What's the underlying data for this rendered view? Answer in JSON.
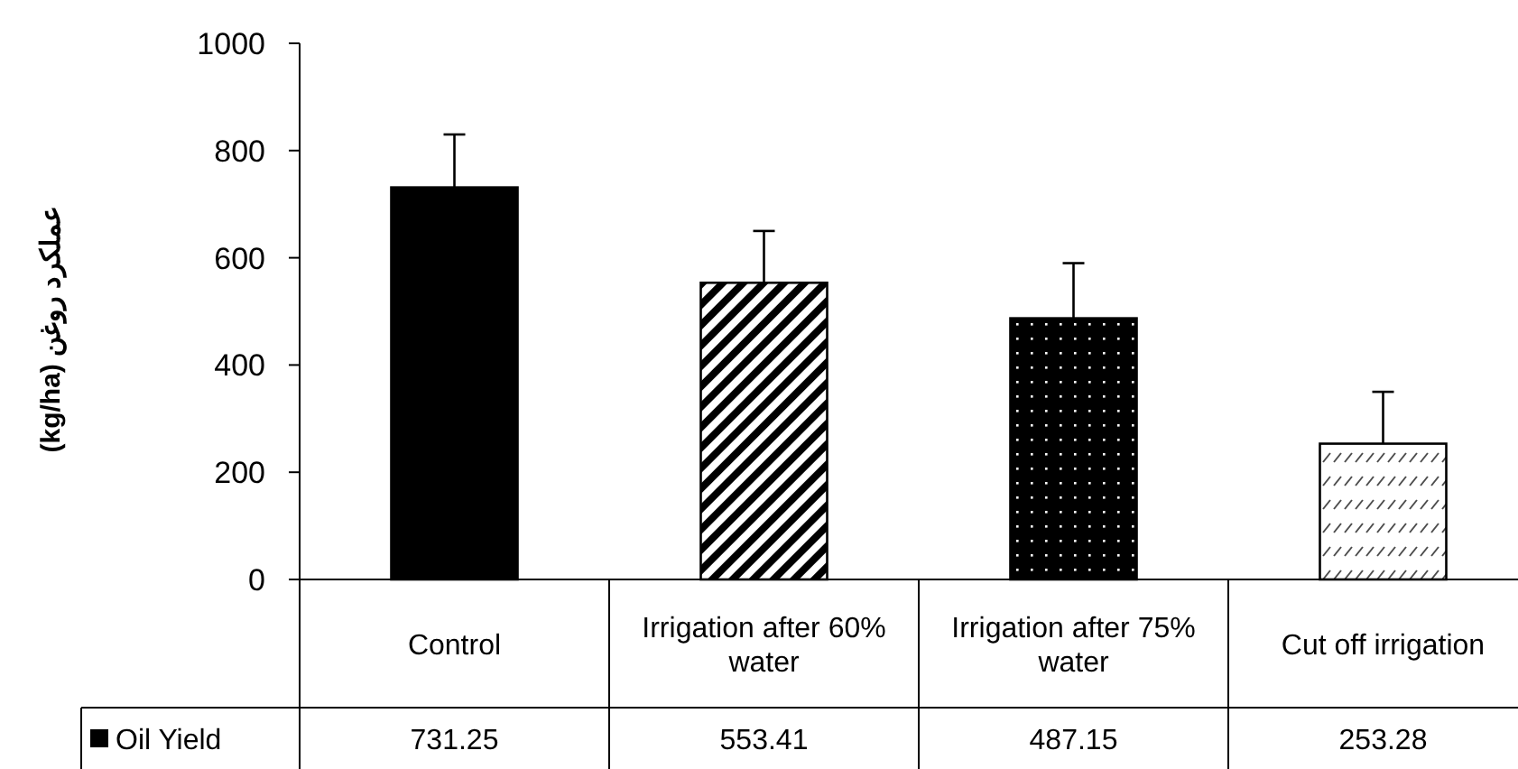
{
  "chart_data": {
    "type": "bar",
    "ylabel": "عملکرد روغن (kg/ha)",
    "categories": [
      "Control",
      "Irrigation after 60% water",
      "Irrigation after 75% water",
      "Cut off irrigation"
    ],
    "series": [
      {
        "name": "Oil Yield",
        "color": "#000000",
        "values": [
          731.25,
          553.41,
          487.15,
          253.28
        ],
        "errors": [
          [
            731.25,
            830
          ],
          [
            553.41,
            650
          ],
          [
            487.15,
            590
          ],
          [
            253.28,
            350
          ]
        ]
      }
    ],
    "ylim": [
      0,
      1000
    ],
    "yticks": [
      0,
      200,
      400,
      600,
      800,
      1000
    ],
    "data_labels": true,
    "legend": "bottom left",
    "grid": false
  }
}
